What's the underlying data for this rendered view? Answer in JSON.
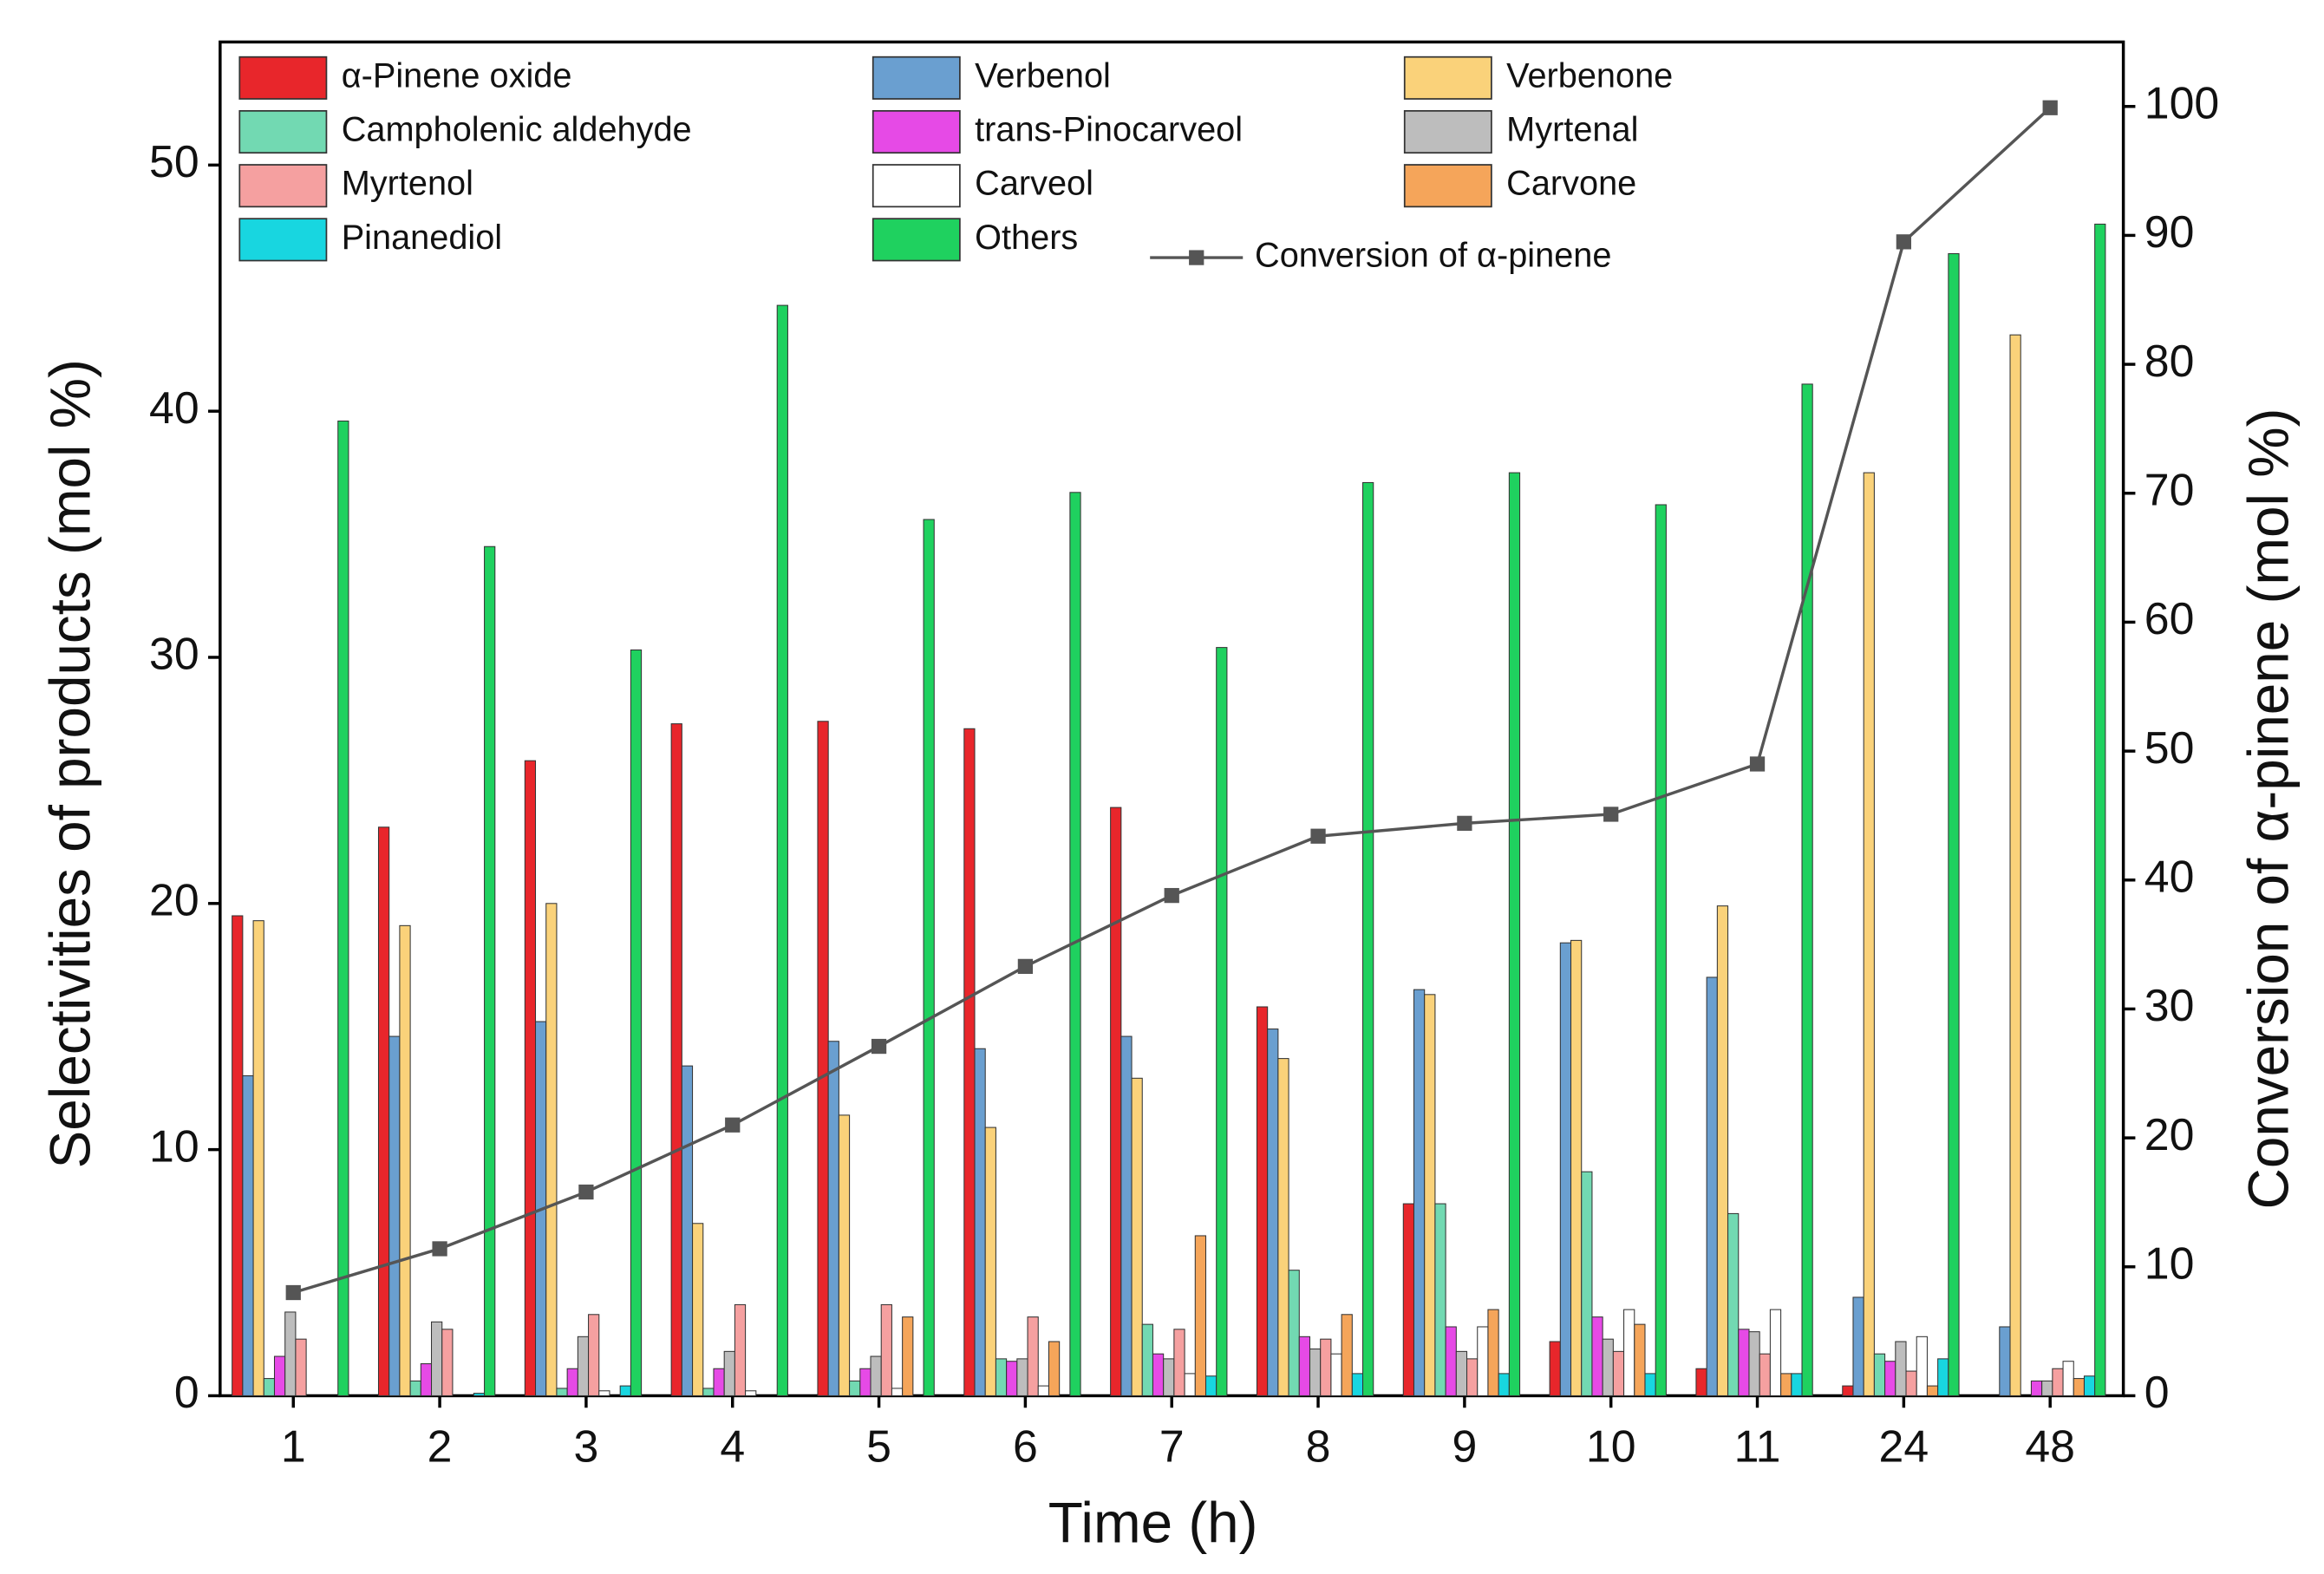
{
  "chart_data": {
    "type": "bar",
    "x_label": "Time (h)",
    "y_label": "Selectivities of products (mol %)",
    "y2_label": "Conversion of α-pinene (mol %)",
    "categories": [
      "1",
      "2",
      "3",
      "4",
      "5",
      "6",
      "7",
      "8",
      "9",
      "10",
      "11",
      "24",
      "48"
    ],
    "ylim": [
      0,
      55
    ],
    "yticks": [
      0,
      10,
      20,
      30,
      40,
      50
    ],
    "y2lim": [
      0,
      105
    ],
    "y2ticks": [
      0,
      10,
      20,
      30,
      40,
      50,
      60,
      70,
      80,
      90,
      100
    ],
    "series": [
      {
        "name": "α-Pinene oxide",
        "color": "#e8262b",
        "values": [
          19.5,
          23.1,
          25.8,
          27.3,
          27.4,
          27.1,
          23.9,
          15.8,
          7.8,
          2.2,
          1.1,
          0.4,
          0
        ]
      },
      {
        "name": "Verbenol",
        "color": "#6a9fd0",
        "values": [
          13.0,
          14.6,
          15.2,
          13.4,
          14.4,
          14.1,
          14.6,
          14.9,
          16.5,
          18.4,
          17.0,
          4.0,
          2.8
        ]
      },
      {
        "name": "Verbenone",
        "color": "#fad27a",
        "values": [
          19.3,
          19.1,
          20.0,
          7.0,
          11.4,
          10.9,
          12.9,
          13.7,
          16.3,
          18.5,
          19.9,
          37.5,
          43.1
        ]
      },
      {
        "name": "Campholenic aldehyde",
        "color": "#72d9b2",
        "values": [
          0.7,
          0.6,
          0.3,
          0.3,
          0.6,
          1.5,
          2.9,
          5.1,
          7.8,
          9.1,
          7.4,
          1.7,
          0
        ]
      },
      {
        "name": "trans-Pinocarveol",
        "color": "#e64ae6",
        "values": [
          1.6,
          1.3,
          1.1,
          1.1,
          1.1,
          1.4,
          1.7,
          2.4,
          2.8,
          3.2,
          2.7,
          1.4,
          0.6
        ]
      },
      {
        "name": "Myrtenal",
        "color": "#bdbdbd",
        "values": [
          3.4,
          3.0,
          2.4,
          1.8,
          1.6,
          1.5,
          1.5,
          1.9,
          1.8,
          2.3,
          2.6,
          2.2,
          0.6
        ]
      },
      {
        "name": "Myrtenol",
        "color": "#f5a0a0",
        "values": [
          2.3,
          2.7,
          3.3,
          3.7,
          3.7,
          3.2,
          2.7,
          2.3,
          1.5,
          1.8,
          1.7,
          1.0,
          1.1
        ]
      },
      {
        "name": "Carveol",
        "color": "#ffffff",
        "values": [
          0,
          0,
          0.2,
          0.2,
          0.3,
          0.4,
          0.9,
          1.7,
          2.8,
          3.5,
          3.5,
          2.4,
          1.4
        ]
      },
      {
        "name": "Carvone",
        "color": "#f5a55a",
        "values": [
          0,
          0,
          0,
          0,
          3.2,
          2.2,
          6.5,
          3.3,
          3.5,
          2.9,
          0.9,
          0.4,
          0.7
        ]
      },
      {
        "name": "Pinanediol",
        "color": "#18d6e0",
        "values": [
          0,
          0.1,
          0.4,
          0,
          0,
          0,
          0.8,
          0.9,
          0.9,
          0.9,
          0.9,
          1.5,
          0.8
        ]
      },
      {
        "name": "Others",
        "color": "#1fd15f",
        "values": [
          39.6,
          34.5,
          30.3,
          44.3,
          35.6,
          36.7,
          30.4,
          37.1,
          37.5,
          36.2,
          41.1,
          46.4,
          47.6
        ]
      },
      {
        "name": "Conversion of α-pinene",
        "color": "#555555",
        "type": "line",
        "axis": "y2",
        "values": [
          8.0,
          11.4,
          15.8,
          21.0,
          27.1,
          33.3,
          38.8,
          43.4,
          44.4,
          45.1,
          49.0,
          89.5,
          99.9
        ]
      }
    ]
  }
}
